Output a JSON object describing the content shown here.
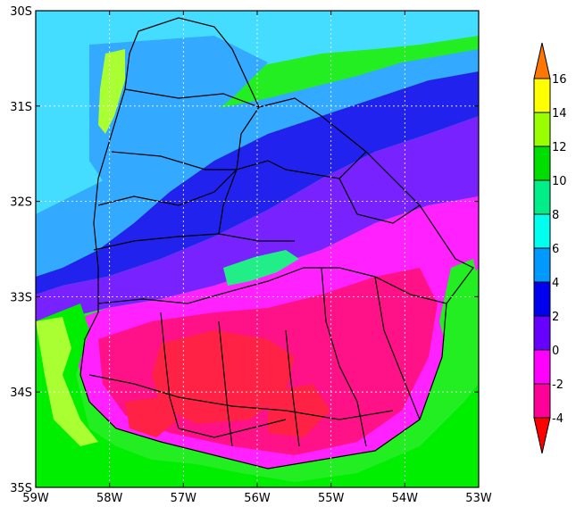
{
  "map": {
    "x_axis": {
      "ticks": [
        {
          "lon": -59,
          "label": "59W"
        },
        {
          "lon": -58,
          "label": "58W"
        },
        {
          "lon": -57,
          "label": "57W"
        },
        {
          "lon": -56,
          "label": "56W"
        },
        {
          "lon": -55,
          "label": "55W"
        },
        {
          "lon": -54,
          "label": "54W"
        },
        {
          "lon": -53,
          "label": "53W"
        }
      ],
      "range": [
        -59,
        -53
      ]
    },
    "y_axis": {
      "ticks": [
        {
          "lat": -30,
          "label": "30S"
        },
        {
          "lat": -31,
          "label": "31S"
        },
        {
          "lat": -32,
          "label": "32S"
        },
        {
          "lat": -33,
          "label": "33S"
        },
        {
          "lat": -34,
          "label": "34S"
        },
        {
          "lat": -35,
          "label": "35S"
        }
      ],
      "range": [
        -35,
        -30
      ]
    },
    "grid": "dotted white gridlines at every degree"
  },
  "colorbar": {
    "levels": [
      {
        "label": "16",
        "color": "#ff9900"
      },
      {
        "label": "14",
        "color": "#ffff00"
      },
      {
        "label": "12",
        "color": "#99ff00"
      },
      {
        "label": "10",
        "color": "#00dd00"
      },
      {
        "label": "8",
        "color": "#00ee88"
      },
      {
        "label": "6",
        "color": "#00ffee"
      },
      {
        "label": "4",
        "color": "#0099ff"
      },
      {
        "label": "2",
        "color": "#0000ee"
      },
      {
        "label": "0",
        "color": "#6600ff"
      },
      {
        "label": "-2",
        "color": "#ff00ff"
      },
      {
        "label": "-4",
        "color": "#ff0099"
      }
    ],
    "top_arrow_color": "#ff7700",
    "bottom_arrow_color": "#ff0000"
  },
  "palette": {
    "red": "#ff2244",
    "rose": "#ff1188",
    "magenta": "#ff22ff",
    "violet": "#7722ff",
    "blue": "#2222ee",
    "sky": "#33aaff",
    "cyan": "#44ddff",
    "green": "#22ee22",
    "yellowgreen": "#aaff33",
    "ocean": "#00ee00"
  }
}
